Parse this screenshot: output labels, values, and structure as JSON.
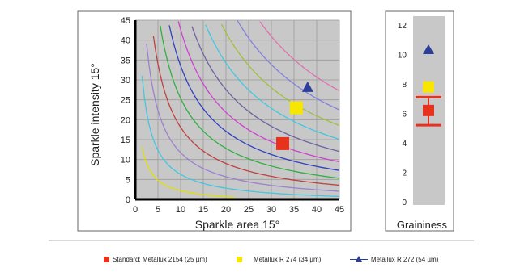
{
  "chart_data": [
    {
      "type": "line",
      "xlabel": "Sparkle area 15°",
      "ylabel": "Sparkle intensity 15°",
      "xlim": [
        0,
        45
      ],
      "ylim": [
        0,
        45
      ],
      "x_ticks": [
        "0",
        "5",
        "10",
        "15",
        "20",
        "25",
        "30",
        "35",
        "40",
        "45"
      ],
      "y_ticks": [
        "0",
        "5",
        "10",
        "15",
        "20",
        "25",
        "30",
        "35",
        "40",
        "45"
      ],
      "grid": true,
      "background": "#c8c8c8",
      "iso_curve_colors": [
        "#e0e000",
        "#40c8e0",
        "#9d80d0",
        "#c04040",
        "#30b040",
        "#3040c0",
        "#d040d0",
        "#7060a0",
        "#40c8e0",
        "#a0c040",
        "#8080e0",
        "#e070b0"
      ],
      "series": [
        {
          "name": "Standard: Metallux 2154 (25 µm)",
          "marker": "square",
          "color": "#e8321e",
          "points": [
            {
              "x": 32.5,
              "y": 14
            }
          ]
        },
        {
          "name": "Metallux R 274 (34 µm)",
          "marker": "square",
          "color": "#f6e600",
          "points": [
            {
              "x": 35.5,
              "y": 23
            }
          ]
        },
        {
          "name": "Metallux R 272 (54 µm)",
          "marker": "triangle",
          "color": "#2c3e9a",
          "points": [
            {
              "x": 38,
              "y": 28
            }
          ]
        }
      ]
    },
    {
      "type": "scatter",
      "xlabel": "Graininess",
      "ylim": [
        0,
        12
      ],
      "y_ticks": [
        "0",
        "2",
        "4",
        "6",
        "8",
        "10",
        "12"
      ],
      "background": "#c8c8c8",
      "series": [
        {
          "name": "Metallux R 272 (54 µm)",
          "marker": "triangle",
          "color": "#2c3e9a",
          "y": 10.3
        },
        {
          "name": "Metallux R 274 (34 µm)",
          "marker": "square",
          "color": "#f6e600",
          "y": 7.8
        },
        {
          "name": "Standard: Metallux 2154 (25 µm)",
          "marker": "square",
          "color": "#e8321e",
          "y": 6.2,
          "range": [
            5.2,
            7.1
          ]
        }
      ]
    }
  ],
  "legend": [
    {
      "label": "Standard: Metallux 2154 (25 µm)",
      "swatch": "square",
      "color": "#e8321e"
    },
    {
      "label": "Metallux R 274 (34 µm)",
      "swatch": "square",
      "color": "#f6e600"
    },
    {
      "label": "Metallux R 272 (54 µm)",
      "swatch": "line-triangle",
      "color": "#2c3e9a"
    }
  ]
}
